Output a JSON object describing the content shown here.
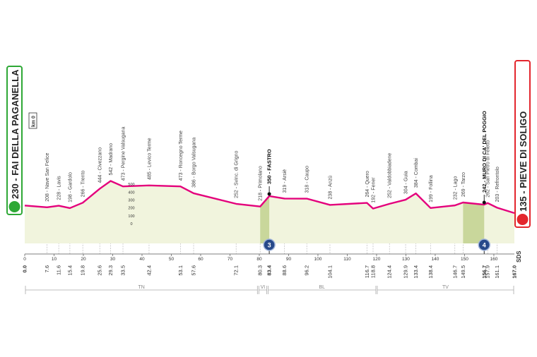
{
  "chart_data": {
    "type": "area",
    "start": {
      "km": {
        "value": 0,
        "label": "0.0"
      },
      "label": "230 - FAI DELLA PAGANELLA"
    },
    "finish": {
      "km": {
        "value": 167,
        "label": "167.0"
      },
      "label": "135 - PIEVE DI SOLIGO"
    },
    "km0_label": "km 0",
    "credit": "SDS",
    "color": "#e4007c",
    "fill": "#f1f4dd",
    "climb_fill": "#c9d79b",
    "climb_color": "#27498a",
    "x": [
      0,
      7.6,
      11.6,
      15.4,
      19.8,
      25.6,
      29.3,
      33.5,
      42.4,
      53.1,
      57.6,
      72.1,
      80.3,
      83.4,
      88.6,
      96.2,
      104.1,
      116.7,
      118.8,
      124.4,
      129.9,
      133.4,
      138.4,
      146.7,
      149.5,
      156.7,
      157.9,
      161.1,
      167
    ],
    "values": [
      230,
      208,
      228,
      198,
      266,
      444,
      542,
      473,
      485,
      473,
      386,
      252,
      218,
      350,
      319,
      318,
      238,
      264,
      192,
      252,
      304,
      384,
      199,
      232,
      269,
      242,
      262,
      203,
      135
    ],
    "xlim": [
      0,
      167
    ],
    "xticks": [
      0,
      10,
      20,
      30,
      40,
      50,
      60,
      70,
      80,
      90,
      100,
      110,
      120,
      130,
      140,
      150,
      160
    ],
    "ylim": [
      -250,
      600
    ],
    "yticks": [
      0,
      100,
      200,
      300,
      400,
      500
    ],
    "waypoints": [
      {
        "km": 7.6,
        "label": "208 - Nave San Felice"
      },
      {
        "km": 11.6,
        "label": "228 - Lavis"
      },
      {
        "km": 15.4,
        "label": "198 - Gardolo"
      },
      {
        "km": 19.8,
        "label": "266 - Trento"
      },
      {
        "km": 25.6,
        "label": "444 - Civezzano"
      },
      {
        "km": 29.3,
        "label": "542 - Madrano"
      },
      {
        "km": 33.5,
        "label": "473 - Pergine Valsugana"
      },
      {
        "km": 42.4,
        "label": "485 - Levico Terme"
      },
      {
        "km": 53.1,
        "label": "473 - Roncegno Terme"
      },
      {
        "km": 57.6,
        "label": "386 - Borgo Valsugana"
      },
      {
        "km": 72.1,
        "label": "252 - Svinc. di Grigno"
      },
      {
        "km": 80.3,
        "label": "218 - Primolano"
      },
      {
        "km": 83.4,
        "label": "350 - FASTRO",
        "bold": true,
        "climb": 3
      },
      {
        "km": 88.6,
        "label": "319 - Arsiè"
      },
      {
        "km": 96.2,
        "label": "318 - Caupo"
      },
      {
        "km": 104.1,
        "label": "238 - Anzù"
      },
      {
        "km": 116.7,
        "label": "264 - Quero"
      },
      {
        "km": 118.8,
        "label": "192 - Fener"
      },
      {
        "km": 124.4,
        "label": "252 - Valdobbiadene"
      },
      {
        "km": 129.9,
        "label": "304 - Guia"
      },
      {
        "km": 133.4,
        "label": "384 - Combai"
      },
      {
        "km": 138.4,
        "label": "199 - Follina"
      },
      {
        "km": 146.7,
        "label": "232 - Lago"
      },
      {
        "km": 149.5,
        "label": "269 - Tarzo"
      },
      {
        "km": 156.7,
        "label": "242 - MURO DI CA' DEL POGGIO",
        "bold": true,
        "climb": 4
      },
      {
        "km": 157.9,
        "label": "262 - San Pietro di Feletto"
      },
      {
        "km": 161.1,
        "label": "203 - Refrontolo"
      }
    ],
    "regions": [
      {
        "label": "TN",
        "from": 0,
        "to": 79.6
      },
      {
        "label": "VI",
        "from": 79.6,
        "to": 82.8
      },
      {
        "label": "BL",
        "from": 82.8,
        "to": 120
      },
      {
        "label": "TV",
        "from": 120,
        "to": 167
      }
    ]
  }
}
